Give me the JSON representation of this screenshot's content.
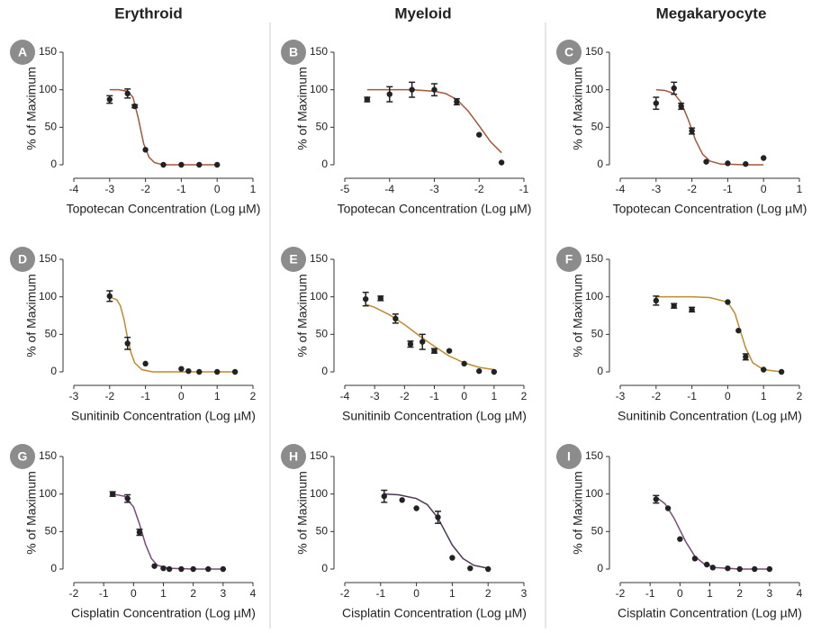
{
  "columns": [
    "Erythroid",
    "Myeloid",
    "Megakaryocyte"
  ],
  "chart_data": [
    {
      "type": "scatter",
      "panel": "A",
      "xlabel": "Topotecan Concentration (Log µM)",
      "ylabel": "% of Maximum",
      "xlim": [
        -4,
        1
      ],
      "xticks": [
        -4,
        -3,
        -2,
        -1,
        0,
        1
      ],
      "ylim": [
        0,
        150
      ],
      "yticks": [
        0,
        50,
        100,
        150
      ],
      "x": [
        -3,
        -2.5,
        -2.3,
        -2,
        -1.5,
        -1,
        -0.5,
        0
      ],
      "values": [
        87,
        95,
        78,
        20,
        0,
        0,
        0,
        0
      ],
      "errors": [
        5,
        6,
        2,
        null,
        null,
        null,
        null,
        null
      ],
      "color": "#222222",
      "fit": {
        "color": "#a5573a",
        "x": [
          -3,
          -2.75,
          -2.5,
          -2.35,
          -2.2,
          -2.05,
          -1.9,
          -1.75,
          -1.6,
          -1.4,
          -1,
          -0.5,
          0
        ],
        "y": [
          100,
          100,
          98,
          90,
          62,
          28,
          10,
          3,
          1,
          0,
          0,
          0,
          0
        ]
      }
    },
    {
      "type": "scatter",
      "panel": "B",
      "xlabel": "Topotecan Concentration (Log µM)",
      "ylabel": "% of Maximum",
      "xlim": [
        -5,
        -1
      ],
      "xticks": [
        -5,
        -4,
        -3,
        -2,
        -1
      ],
      "ylim": [
        0,
        150
      ],
      "yticks": [
        0,
        50,
        100,
        150
      ],
      "x": [
        -4.5,
        -4,
        -3.5,
        -3,
        -2.5,
        -2,
        -1.5
      ],
      "values": [
        87,
        94,
        100,
        100,
        84,
        40,
        3
      ],
      "errors": [
        3,
        10,
        10,
        8,
        4,
        null,
        null
      ],
      "color": "#222222",
      "fit": {
        "color": "#a5573a",
        "x": [
          -4.5,
          -4,
          -3.5,
          -3,
          -2.75,
          -2.5,
          -2.25,
          -2,
          -1.75,
          -1.5
        ],
        "y": [
          100,
          100,
          100,
          98,
          95,
          87,
          72,
          52,
          31,
          16
        ]
      }
    },
    {
      "type": "scatter",
      "panel": "C",
      "xlabel": "Topotecan Concentration (Log µM)",
      "ylabel": "% of Maximum",
      "xlim": [
        -4,
        1
      ],
      "xticks": [
        -4,
        -3,
        -2,
        -1,
        0,
        1
      ],
      "ylim": [
        0,
        150
      ],
      "yticks": [
        0,
        50,
        100,
        150
      ],
      "x": [
        -3,
        -2.5,
        -2.3,
        -2,
        -1.6,
        -1,
        -0.5,
        0
      ],
      "values": [
        82,
        102,
        78,
        45,
        4,
        2,
        1,
        9
      ],
      "errors": [
        8,
        8,
        4,
        4,
        null,
        null,
        null,
        null
      ],
      "color": "#222222",
      "fit": {
        "color": "#a5573a",
        "x": [
          -3,
          -2.75,
          -2.5,
          -2.3,
          -2.1,
          -1.9,
          -1.7,
          -1.5,
          -1.2,
          -0.5,
          0
        ],
        "y": [
          100,
          99,
          95,
          83,
          60,
          33,
          14,
          5,
          1,
          0,
          0
        ]
      }
    },
    {
      "type": "scatter",
      "panel": "D",
      "xlabel": "Sunitinib Concentration (Log µM)",
      "ylabel": "% of Maximum",
      "xlim": [
        -3,
        2
      ],
      "xticks": [
        -3,
        -2,
        -1,
        0,
        1,
        2
      ],
      "ylim": [
        0,
        150
      ],
      "yticks": [
        0,
        50,
        100,
        150
      ],
      "x": [
        -2,
        -1.5,
        -1,
        0,
        0.2,
        0.5,
        1,
        1.5
      ],
      "values": [
        101,
        38,
        11,
        4,
        1,
        0,
        0,
        0
      ],
      "errors": [
        7,
        8,
        null,
        null,
        null,
        null,
        null,
        null
      ],
      "color": "#222222",
      "fit": {
        "color": "#c08a2e",
        "x": [
          -2,
          -1.8,
          -1.7,
          -1.6,
          -1.5,
          -1.4,
          -1.3,
          -1.1,
          -0.8,
          0,
          1.5
        ],
        "y": [
          100,
          96,
          88,
          70,
          45,
          25,
          12,
          3,
          0,
          0,
          0
        ]
      }
    },
    {
      "type": "scatter",
      "panel": "E",
      "xlabel": "Sunitinib Concentration (Log µM)",
      "ylabel": "% of Maximum",
      "xlim": [
        -4,
        2
      ],
      "xticks": [
        -4,
        -3,
        -2,
        -1,
        0,
        1,
        2
      ],
      "ylim": [
        0,
        150
      ],
      "yticks": [
        0,
        50,
        100,
        150
      ],
      "x": [
        -3.3,
        -2.8,
        -2.3,
        -1.8,
        -1.4,
        -1,
        -0.5,
        0,
        0.5,
        1
      ],
      "values": [
        97,
        98,
        71,
        37,
        40,
        28,
        28,
        11,
        1,
        0
      ],
      "errors": [
        9,
        3,
        6,
        4,
        10,
        3,
        null,
        null,
        null,
        null
      ],
      "color": "#222222",
      "fit": {
        "color": "#c08a2e",
        "x": [
          -3.3,
          -3,
          -2.5,
          -2,
          -1.5,
          -1,
          -0.5,
          0,
          0.5,
          1
        ],
        "y": [
          90,
          86,
          76,
          63,
          48,
          34,
          21,
          12,
          6,
          3
        ]
      }
    },
    {
      "type": "scatter",
      "panel": "F",
      "xlabel": "Sunitinib Concentration (Log µM)",
      "ylabel": "% of Maximum",
      "xlim": [
        -3,
        2
      ],
      "xticks": [
        -3,
        -2,
        -1,
        0,
        1,
        2
      ],
      "ylim": [
        0,
        150
      ],
      "yticks": [
        0,
        50,
        100,
        150
      ],
      "x": [
        -2,
        -1.5,
        -1,
        0,
        0.3,
        0.5,
        1,
        1.5
      ],
      "values": [
        95,
        88,
        83,
        93,
        55,
        20,
        3,
        0
      ],
      "errors": [
        6,
        3,
        3,
        null,
        null,
        4,
        null,
        null
      ],
      "color": "#222222",
      "fit": {
        "color": "#c08a2e",
        "x": [
          -2,
          -1,
          -0.5,
          0,
          0.2,
          0.35,
          0.5,
          0.7,
          1,
          1.5
        ],
        "y": [
          100,
          100,
          99,
          93,
          78,
          55,
          32,
          12,
          3,
          0
        ]
      }
    },
    {
      "type": "scatter",
      "panel": "G",
      "xlabel": "Cisplatin Concentration (Log µM)",
      "ylabel": "% of Maximum",
      "xlim": [
        -2,
        4
      ],
      "xticks": [
        -2,
        -1,
        0,
        1,
        2,
        3,
        4
      ],
      "ylim": [
        0,
        150
      ],
      "yticks": [
        0,
        50,
        100,
        150
      ],
      "x": [
        -0.7,
        -0.2,
        0.2,
        0.7,
        1,
        1.2,
        1.6,
        2,
        2.5,
        3
      ],
      "values": [
        100,
        94,
        49,
        4,
        1,
        0,
        0,
        0,
        0,
        0
      ],
      "errors": [
        3,
        5,
        4,
        null,
        null,
        null,
        null,
        null,
        null,
        null
      ],
      "color": "#222222",
      "fit": {
        "color": "#7b4a7b",
        "x": [
          -0.7,
          -0.3,
          0,
          0.2,
          0.4,
          0.6,
          0.8,
          1.2,
          2,
          3
        ],
        "y": [
          100,
          97,
          83,
          60,
          33,
          14,
          5,
          1,
          0,
          0
        ]
      }
    },
    {
      "type": "scatter",
      "panel": "H",
      "xlabel": "Cisplatin Concentration (Log µM)",
      "ylabel": "% of Maximum",
      "xlim": [
        -2,
        3
      ],
      "xticks": [
        -2,
        -1,
        0,
        1,
        2,
        3
      ],
      "ylim": [
        0,
        150
      ],
      "yticks": [
        0,
        50,
        100,
        150
      ],
      "x": [
        -0.9,
        -0.4,
        0,
        0.6,
        1,
        1.5,
        2
      ],
      "values": [
        97,
        92,
        81,
        69,
        15,
        1,
        0
      ],
      "errors": [
        8,
        null,
        null,
        8,
        null,
        null,
        null
      ],
      "color": "#222222",
      "fit": {
        "color": "#4a3552",
        "x": [
          -0.9,
          -0.5,
          0,
          0.3,
          0.6,
          0.8,
          1,
          1.3,
          1.6,
          2
        ],
        "y": [
          100,
          99,
          94,
          86,
          68,
          50,
          32,
          14,
          5,
          1
        ]
      }
    },
    {
      "type": "scatter",
      "panel": "I",
      "xlabel": "Cisplatin Concentration (Log µM)",
      "ylabel": "% of Maximum",
      "xlim": [
        -2,
        4
      ],
      "xticks": [
        -2,
        -1,
        0,
        1,
        2,
        3,
        4
      ],
      "ylim": [
        0,
        150
      ],
      "yticks": [
        0,
        50,
        100,
        150
      ],
      "x": [
        -0.8,
        -0.4,
        0,
        0.5,
        0.9,
        1.1,
        1.6,
        2,
        2.5,
        3
      ],
      "values": [
        93,
        81,
        40,
        14,
        6,
        2,
        1,
        0,
        0,
        0
      ],
      "errors": [
        5,
        null,
        null,
        null,
        null,
        null,
        null,
        null,
        null,
        null
      ],
      "color": "#222222",
      "fit": {
        "color": "#7b4a7b",
        "x": [
          -0.8,
          -0.5,
          -0.2,
          0,
          0.2,
          0.5,
          0.8,
          1.2,
          2,
          3
        ],
        "y": [
          96,
          87,
          68,
          52,
          36,
          17,
          7,
          2,
          0,
          0
        ]
      }
    }
  ]
}
